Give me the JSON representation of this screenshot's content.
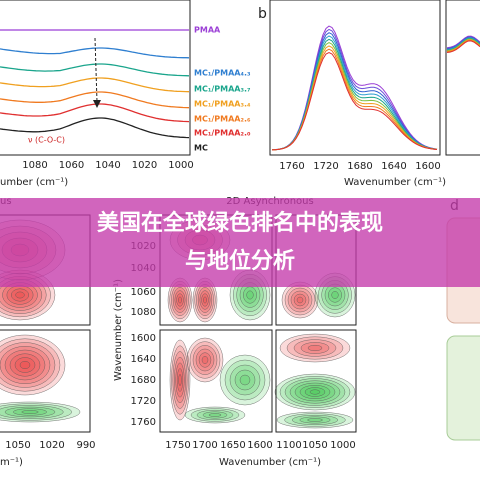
{
  "panel_a": {
    "legend": [
      "PMAA",
      "MC₁/PMAA₄.₃",
      "MC₁/PMAA₃.₇",
      "MC₁/PMAA₃.₄",
      "MC₁/PMAA₂.₆",
      "MC₁/PMAA₂.₀",
      "MC"
    ],
    "annotation": "ν (C-O-C)",
    "xticks": [
      "1080",
      "1060",
      "1040",
      "1020",
      "1000"
    ],
    "xlabel": "umber (cm⁻¹)"
  },
  "panel_b": {
    "label": "b",
    "xticks": [
      "1760",
      "1720",
      "1680",
      "1640",
      "1600"
    ],
    "xlabel": "Wavenumber (cm⁻¹)"
  },
  "panel_c": {
    "corner": "us",
    "title": "2D Asynchronous",
    "yticks_top": [
      "1020",
      "1040",
      "1060",
      "1080"
    ],
    "yticks_bottom": [
      "1600",
      "1640",
      "1680",
      "1720",
      "1760"
    ],
    "ylabel": "Wavenumber (cm⁻¹)",
    "xticks": [
      "1750",
      "1700",
      "1650",
      "1600",
      "1100",
      "1050",
      "1000"
    ],
    "xlabel": "Wavenumber (cm⁻¹)",
    "left_xticks": [
      "1050",
      "1020",
      "990"
    ],
    "left_xlabel": "m⁻¹)"
  },
  "panel_d": {
    "label": "d"
  },
  "banner": {
    "lines": [
      "美国在全球绿色排名中的表现",
      "与地位分析"
    ]
  }
}
